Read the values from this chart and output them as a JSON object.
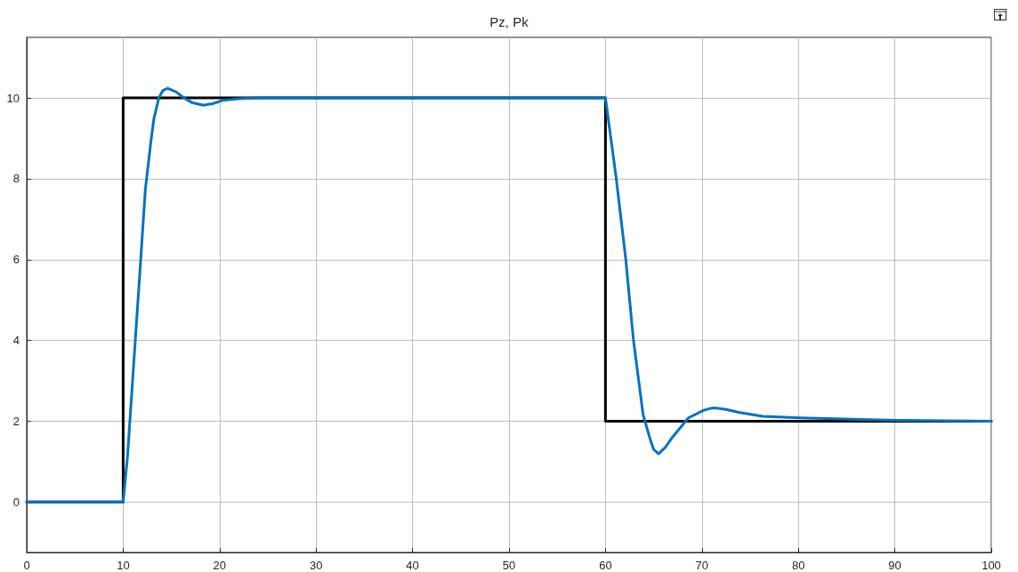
{
  "chart_data": {
    "type": "line",
    "title": "Pz, Pk",
    "xlim": [
      0,
      100
    ],
    "xticks": [
      0,
      10,
      20,
      30,
      40,
      50,
      60,
      70,
      80,
      90,
      100
    ],
    "ylim": [
      -1.25,
      11.5
    ],
    "yticks": [
      0,
      2,
      4,
      6,
      8,
      10
    ],
    "grid": true,
    "marker": "none",
    "line_style": "solid",
    "series": [
      {
        "color": "#000000",
        "x": [
          0,
          10,
          10,
          60,
          60,
          100
        ],
        "values": [
          0,
          0,
          10,
          10,
          2,
          2
        ]
      },
      {
        "color": "#0072bd",
        "x": [
          0,
          10,
          10.45,
          11.07,
          11.69,
          12.3,
          12.9,
          13.2,
          13.7,
          14.1,
          14.6,
          15.5,
          16.3,
          17.2,
          18.3,
          19.3,
          20.3,
          22,
          24,
          60,
          61.1,
          62.1,
          62.9,
          63.9,
          64.7,
          65,
          65.5,
          66.2,
          67,
          68.6,
          70.2,
          70.8,
          71.3,
          72.5,
          73.8,
          76.3,
          80.2,
          90,
          100
        ],
        "values": [
          0,
          0,
          1.12,
          3.33,
          5.53,
          7.73,
          8.97,
          9.5,
          10,
          10.18,
          10.24,
          10.15,
          10,
          9.88,
          9.82,
          9.86,
          9.94,
          9.98,
          10,
          10,
          8.04,
          6.02,
          4.01,
          2.16,
          1.5,
          1.3,
          1.19,
          1.35,
          1.62,
          2.08,
          2.27,
          2.31,
          2.33,
          2.29,
          2.22,
          2.12,
          2.08,
          2.02,
          2
        ]
      }
    ]
  }
}
